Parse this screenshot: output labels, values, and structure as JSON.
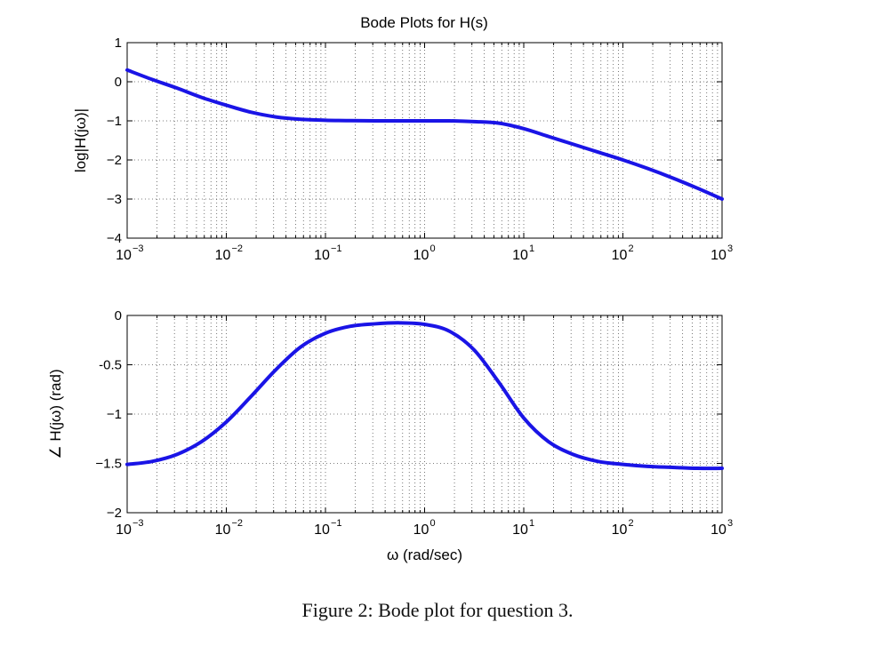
{
  "figure": {
    "title": "Bode Plots for H(s)",
    "caption": "Figure 2: Bode plot for question 3.",
    "line_color": "#1a14e6"
  },
  "chart_data": [
    {
      "type": "line",
      "title": "Bode Plots for H(s)",
      "xlabel": "",
      "ylabel": "log|H(jω)|",
      "xscale": "log",
      "xlim": [
        0.001,
        1000
      ],
      "ylim": [
        -4,
        1
      ],
      "grid": true,
      "xticks": [
        {
          "value": 0.001,
          "base": "10",
          "exp": "−3"
        },
        {
          "value": 0.01,
          "base": "10",
          "exp": "−2"
        },
        {
          "value": 0.1,
          "base": "10",
          "exp": "−1"
        },
        {
          "value": 1,
          "base": "10",
          "exp": "0"
        },
        {
          "value": 10,
          "base": "10",
          "exp": "1"
        },
        {
          "value": 100,
          "base": "10",
          "exp": "2"
        },
        {
          "value": 1000,
          "base": "10",
          "exp": "3"
        }
      ],
      "yticks": [
        {
          "value": 1,
          "label": "1"
        },
        {
          "value": 0,
          "label": "0"
        },
        {
          "value": -1,
          "label": "−1"
        },
        {
          "value": -2,
          "label": "−2"
        },
        {
          "value": -3,
          "label": "−3"
        },
        {
          "value": -4,
          "label": "−4"
        }
      ],
      "series": [
        {
          "x": [
            0.001,
            0.00178,
            0.00316,
            0.00562,
            0.01,
            0.0178,
            0.0316,
            0.0562,
            0.1,
            0.178,
            0.316,
            0.562,
            1,
            1.78,
            3.16,
            5.62,
            10,
            17.8,
            31.6,
            56.2,
            100,
            178,
            316,
            562,
            1000
          ],
          "y": [
            0.3,
            0.06,
            -0.16,
            -0.4,
            -0.6,
            -0.78,
            -0.9,
            -0.96,
            -0.985,
            -0.995,
            -1.0,
            -1.0,
            -1.0,
            -1.0,
            -1.02,
            -1.06,
            -1.2,
            -1.4,
            -1.6,
            -1.8,
            -2.0,
            -2.22,
            -2.46,
            -2.72,
            -3.0
          ]
        }
      ]
    },
    {
      "type": "line",
      "title": "",
      "xlabel": "ω (rad/sec)",
      "ylabel": "∠ H(jω) (rad)",
      "xscale": "log",
      "xlim": [
        0.001,
        1000
      ],
      "ylim": [
        -2,
        0
      ],
      "grid": true,
      "xticks": [
        {
          "value": 0.001,
          "base": "10",
          "exp": "−3"
        },
        {
          "value": 0.01,
          "base": "10",
          "exp": "−2"
        },
        {
          "value": 0.1,
          "base": "10",
          "exp": "−1"
        },
        {
          "value": 1,
          "base": "10",
          "exp": "0"
        },
        {
          "value": 10,
          "base": "10",
          "exp": "1"
        },
        {
          "value": 100,
          "base": "10",
          "exp": "2"
        },
        {
          "value": 1000,
          "base": "10",
          "exp": "3"
        }
      ],
      "yticks": [
        {
          "value": 0,
          "label": "0"
        },
        {
          "value": -0.5,
          "label": "-0.5"
        },
        {
          "value": -1,
          "label": "−1"
        },
        {
          "value": -1.5,
          "label": "−1.5"
        },
        {
          "value": -2,
          "label": "−2"
        }
      ],
      "series": [
        {
          "x": [
            0.001,
            0.00178,
            0.00316,
            0.00562,
            0.01,
            0.0178,
            0.0316,
            0.0562,
            0.1,
            0.178,
            0.316,
            0.562,
            1,
            1.78,
            3.16,
            5.62,
            10,
            17.8,
            31.6,
            56.2,
            100,
            178,
            316,
            562,
            1000
          ],
          "y": [
            -1.51,
            -1.48,
            -1.41,
            -1.28,
            -1.08,
            -0.82,
            -0.55,
            -0.32,
            -0.18,
            -0.11,
            -0.085,
            -0.075,
            -0.09,
            -0.16,
            -0.35,
            -0.68,
            -1.04,
            -1.28,
            -1.41,
            -1.48,
            -1.51,
            -1.53,
            -1.54,
            -1.55,
            -1.55
          ]
        }
      ]
    }
  ]
}
